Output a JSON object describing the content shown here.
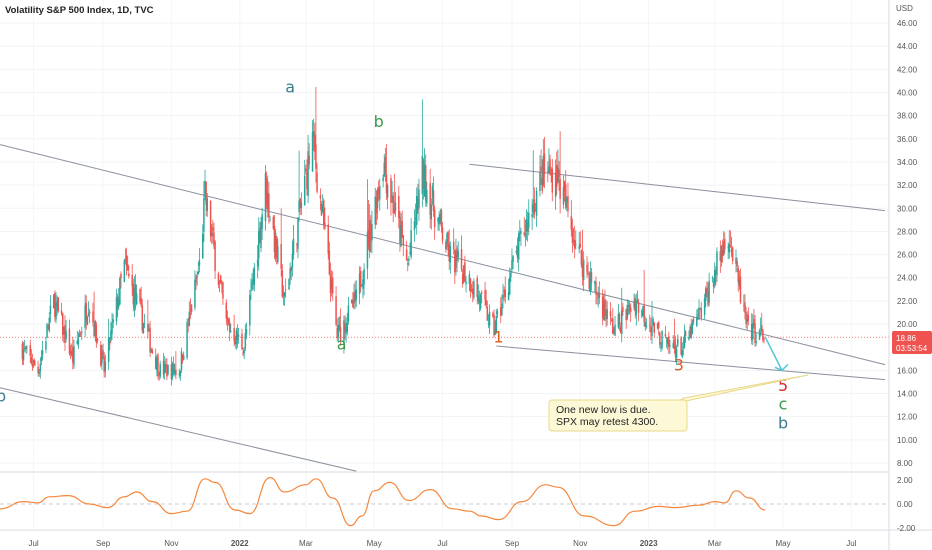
{
  "header": {
    "title": "Volatility S&P 500 Index, 1D, TVC"
  },
  "chart_data": [
    {
      "type": "candlestick",
      "title": "Volatility S&P 500 Index, 1D, TVC",
      "currency": "USD",
      "x_ticks": [
        "Jul",
        "Sep",
        "Nov",
        "2022",
        "Mar",
        "May",
        "Jul",
        "Sep",
        "Nov",
        "2023",
        "Mar",
        "May",
        "Jul"
      ],
      "y_ticks": [
        "46.00",
        "44.00",
        "42.00",
        "40.00",
        "38.00",
        "36.00",
        "34.00",
        "32.00",
        "30.00",
        "28.00",
        "26.00",
        "24.00",
        "22.00",
        "20.00",
        "16.00",
        "14.00",
        "12.00",
        "10.00",
        "8.00"
      ],
      "ylim": [
        7,
        47
      ],
      "last_price": {
        "value": "18.86",
        "countdown": "03:53:54"
      },
      "colors": {
        "up": "#26a69a",
        "down": "#ef5350",
        "accent": "#ef5350"
      },
      "price_path": [
        [
          "2021-06-20",
          18
        ],
        [
          "2021-07-05",
          16
        ],
        [
          "2021-07-19",
          22
        ],
        [
          "2021-08-05",
          17
        ],
        [
          "2021-08-19",
          22
        ],
        [
          "2021-09-02",
          16
        ],
        [
          "2021-09-20",
          25
        ],
        [
          "2021-10-04",
          21
        ],
        [
          "2021-10-21",
          16
        ],
        [
          "2021-11-08",
          16
        ],
        [
          "2021-11-26",
          25
        ],
        [
          "2021-12-01",
          31
        ],
        [
          "2021-12-20",
          20
        ],
        [
          "2022-01-05",
          18
        ],
        [
          "2022-01-24",
          32
        ],
        [
          "2022-02-10",
          22
        ],
        [
          "2022-03-07",
          36
        ],
        [
          "2022-03-29",
          19
        ],
        [
          "2022-04-15",
          22
        ],
        [
          "2022-05-09",
          34
        ],
        [
          "2022-05-31",
          25
        ],
        [
          "2022-06-13",
          33
        ],
        [
          "2022-07-07",
          26
        ],
        [
          "2022-07-25",
          24
        ],
        [
          "2022-08-16",
          19.5
        ],
        [
          "2022-09-05",
          26
        ],
        [
          "2022-09-29",
          33
        ],
        [
          "2022-10-11",
          33
        ],
        [
          "2022-10-31",
          26
        ],
        [
          "2022-11-14",
          23
        ],
        [
          "2022-12-01",
          19.5
        ],
        [
          "2022-12-20",
          22
        ],
        [
          "2023-01-18",
          18
        ],
        [
          "2023-02-01",
          18
        ],
        [
          "2023-02-17",
          21
        ],
        [
          "2023-03-13",
          28
        ],
        [
          "2023-03-30",
          19.5
        ],
        [
          "2023-04-14",
          18.9
        ]
      ],
      "trendlines": [
        {
          "from": [
            "2021-06-01",
            35.5
          ],
          "to": [
            "2023-07-31",
            16.5
          ]
        },
        {
          "from": [
            "2022-07-25",
            33.8
          ],
          "to": [
            "2023-07-31",
            29.8
          ]
        },
        {
          "from": [
            "2022-08-18",
            18.1
          ],
          "to": [
            "2023-07-31",
            15.2
          ]
        },
        {
          "from": [
            "2021-06-01",
            14.5
          ],
          "to": [
            "2022-04-15",
            7.3
          ]
        }
      ],
      "projection": {
        "from": [
          "2023-04-15",
          18.9
        ],
        "to": [
          "2023-04-30",
          16.0
        ]
      },
      "wave_labels": [
        {
          "text": "a",
          "x": "2022-02-15",
          "y": 40,
          "color": "#3a7f8c"
        },
        {
          "text": "b",
          "x": "2022-05-05",
          "y": 37,
          "color": "#3a9a4a"
        },
        {
          "text": "a",
          "x": "2022-04-02",
          "y": 17.8,
          "color": "#3a9a4a"
        },
        {
          "text": "1",
          "x": "2022-08-20",
          "y": 18.4,
          "color": "#e05a1e"
        },
        {
          "text": "3",
          "x": "2023-01-28",
          "y": 16.0,
          "color": "#e05a1e"
        },
        {
          "text": "5",
          "x": "2023-05-01",
          "y": 14.2,
          "color": "#d62828"
        },
        {
          "text": "c",
          "x": "2023-05-01",
          "y": 12.6,
          "color": "#3a9a4a"
        },
        {
          "text": "b",
          "x": "2023-05-01",
          "y": 11.0,
          "color": "#3a7f8c"
        },
        {
          "text": "b",
          "x": "2021-06-02",
          "y": 13.3,
          "color": "#3a7f8c"
        }
      ],
      "annotation": {
        "line1": "One new low is due.",
        "line2": "SPX may retest 4300."
      }
    },
    {
      "type": "line",
      "name": "oscillator",
      "y_ticks": [
        "2.00",
        "0.00",
        "-2.00"
      ],
      "ylim": [
        -2.6,
        2.6
      ],
      "color": "#f5873c",
      "points": [
        [
          "2021-06-01",
          -0.4
        ],
        [
          "2021-06-22",
          0.2
        ],
        [
          "2021-07-05",
          0.1
        ],
        [
          "2021-07-15",
          0.6
        ],
        [
          "2021-08-01",
          0.7
        ],
        [
          "2021-08-20",
          0.0
        ],
        [
          "2021-09-05",
          -0.3
        ],
        [
          "2021-09-20",
          0.6
        ],
        [
          "2021-10-01",
          1.0
        ],
        [
          "2021-10-15",
          0.2
        ],
        [
          "2021-11-01",
          -0.8
        ],
        [
          "2021-11-15",
          -0.6
        ],
        [
          "2021-12-01",
          2.1
        ],
        [
          "2021-12-10",
          1.8
        ],
        [
          "2021-12-28",
          -0.5
        ],
        [
          "2022-01-10",
          -0.8
        ],
        [
          "2022-01-28",
          2.2
        ],
        [
          "2022-02-10",
          1.0
        ],
        [
          "2022-03-01",
          1.6
        ],
        [
          "2022-03-10",
          2.1
        ],
        [
          "2022-03-25",
          0.5
        ],
        [
          "2022-04-10",
          -1.8
        ],
        [
          "2022-04-20",
          -1.0
        ],
        [
          "2022-05-01",
          1.1
        ],
        [
          "2022-05-15",
          1.8
        ],
        [
          "2022-06-01",
          0.3
        ],
        [
          "2022-06-20",
          1.2
        ],
        [
          "2022-07-10",
          -0.4
        ],
        [
          "2022-07-25",
          -0.6
        ],
        [
          "2022-08-05",
          -1.0
        ],
        [
          "2022-08-20",
          -1.3
        ],
        [
          "2022-09-10",
          0.2
        ],
        [
          "2022-10-01",
          1.6
        ],
        [
          "2022-10-12",
          1.4
        ],
        [
          "2022-11-05",
          -1.0
        ],
        [
          "2022-12-01",
          -1.8
        ],
        [
          "2022-12-20",
          -0.6
        ],
        [
          "2023-01-10",
          -0.2
        ],
        [
          "2023-01-25",
          -0.3
        ],
        [
          "2023-02-15",
          -0.1
        ],
        [
          "2023-03-01",
          0.2
        ],
        [
          "2023-03-10",
          0.1
        ],
        [
          "2023-03-20",
          1.1
        ],
        [
          "2023-04-01",
          0.5
        ],
        [
          "2023-04-15",
          -0.5
        ]
      ]
    }
  ]
}
